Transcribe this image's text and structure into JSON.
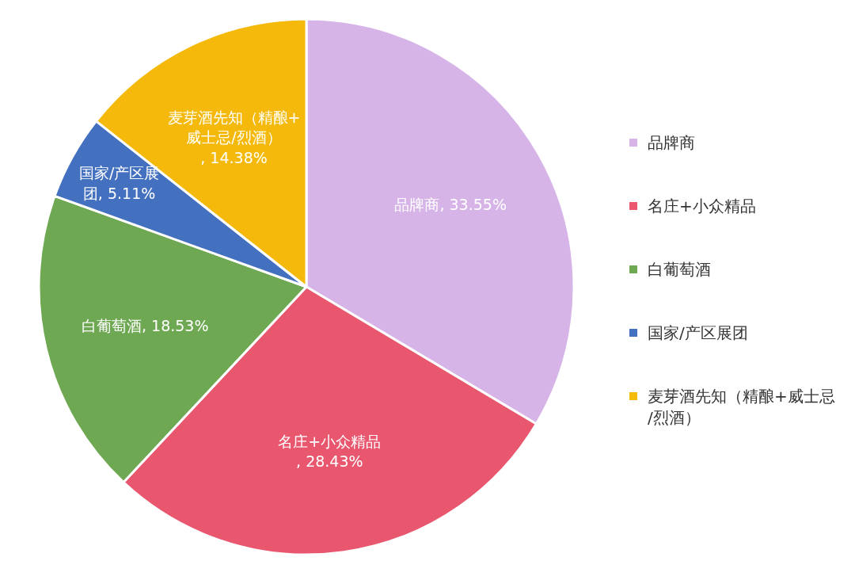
{
  "chart_data": {
    "type": "pie",
    "categories": [
      "品牌商",
      "名庄+小众精品",
      "白葡萄酒",
      "国家/产区展团",
      "麦芽酒先知（精酿+威士忌/烈酒）"
    ],
    "values": [
      33.55,
      28.43,
      18.53,
      5.11,
      14.38
    ],
    "colors": [
      "#d6b4e8",
      "#e9576f",
      "#6fa852",
      "#4470c0",
      "#f4b90a"
    ],
    "value_labels": [
      ", 33.55%",
      ", 28.43%",
      ", 18.53%",
      ", 5.11%",
      ", 14.38%"
    ],
    "legend": "right"
  }
}
